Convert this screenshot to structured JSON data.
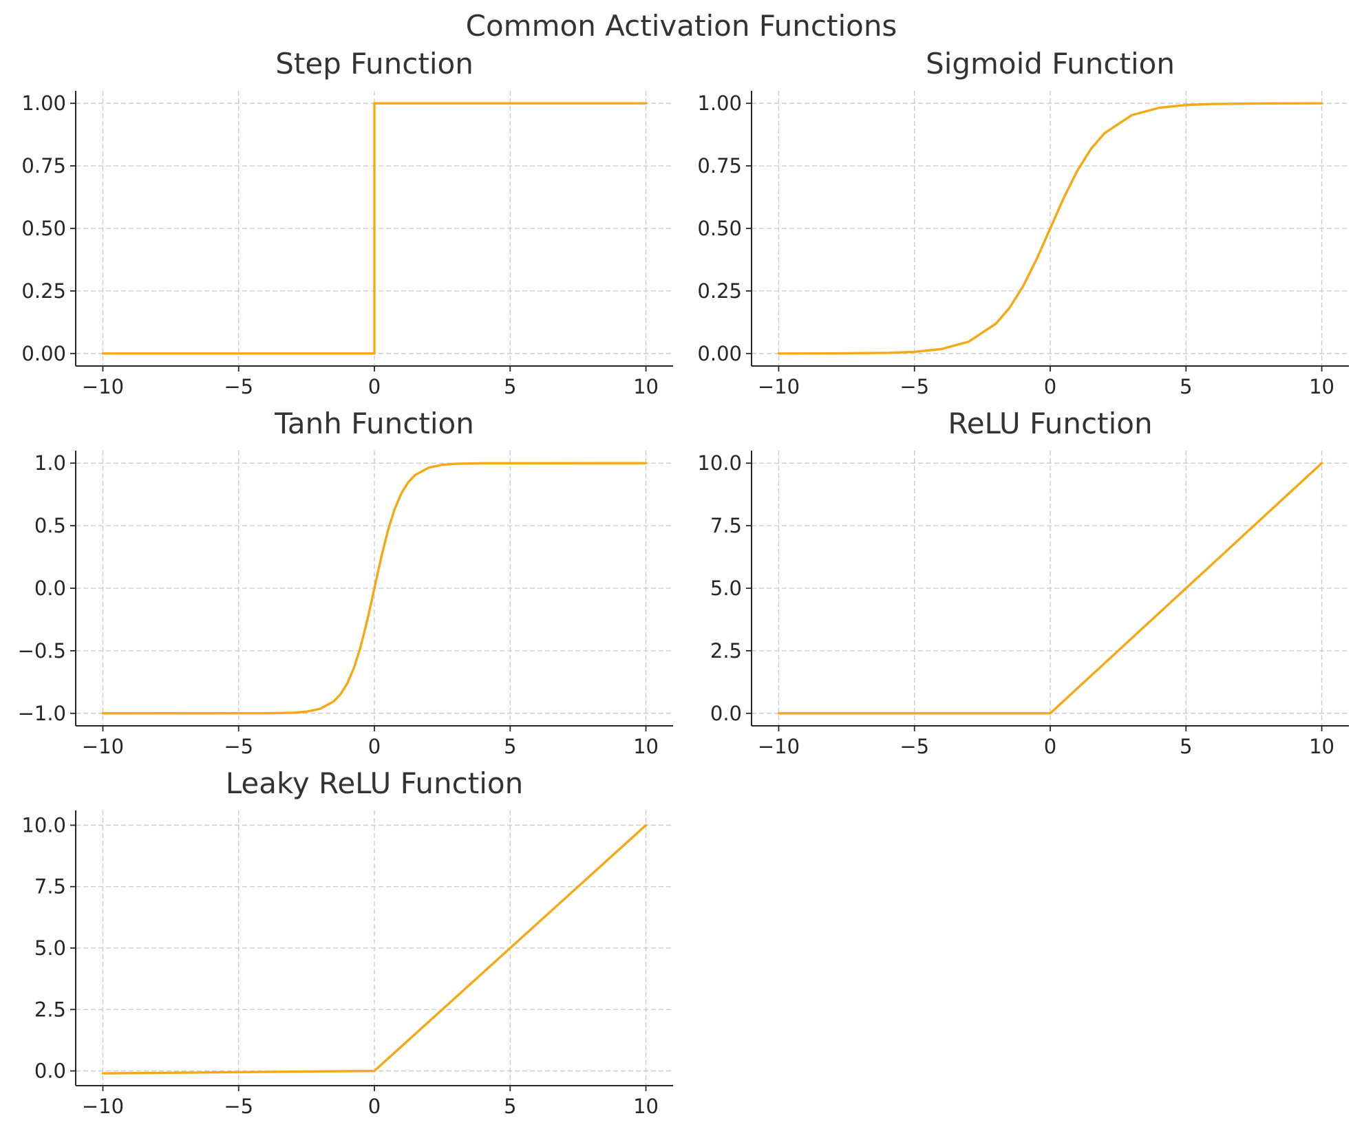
{
  "figure": {
    "title": "Common Activation Functions",
    "line_color": "#F5A813"
  },
  "chart_data": [
    {
      "type": "line",
      "title": "Step Function",
      "xlabel": "",
      "ylabel": "",
      "grid": true,
      "xlim": [
        -11,
        11
      ],
      "ylim": [
        -0.05,
        1.05
      ],
      "xticks": [
        -10,
        -5,
        0,
        5,
        10
      ],
      "xtick_labels": [
        "−10",
        "−5",
        "0",
        "5",
        "10"
      ],
      "yticks": [
        0,
        0.25,
        0.5,
        0.75,
        1
      ],
      "ytick_labels": [
        "0.00",
        "0.25",
        "0.50",
        "0.75",
        "1.00"
      ],
      "series": [
        {
          "x": [
            -10,
            0,
            0,
            10
          ],
          "y": [
            0,
            0,
            1,
            1
          ]
        }
      ]
    },
    {
      "type": "line",
      "title": "Sigmoid Function",
      "xlabel": "",
      "ylabel": "",
      "grid": true,
      "xlim": [
        -11,
        11
      ],
      "ylim": [
        -0.05,
        1.05
      ],
      "xticks": [
        -10,
        -5,
        0,
        5,
        10
      ],
      "xtick_labels": [
        "−10",
        "−5",
        "0",
        "5",
        "10"
      ],
      "yticks": [
        0,
        0.25,
        0.5,
        0.75,
        1
      ],
      "ytick_labels": [
        "0.00",
        "0.25",
        "0.50",
        "0.75",
        "1.00"
      ],
      "series": [
        {
          "x": [
            -10,
            -8,
            -6,
            -5,
            -4,
            -3,
            -2,
            -1.5,
            -1,
            -0.5,
            0,
            0.5,
            1,
            1.5,
            2,
            3,
            4,
            5,
            6,
            8,
            10
          ],
          "y": [
            4.54e-05,
            0.000335,
            0.00247,
            0.00669,
            0.018,
            0.0474,
            0.1192,
            0.1824,
            0.2689,
            0.3775,
            0.5,
            0.6225,
            0.7311,
            0.8176,
            0.8808,
            0.9526,
            0.982,
            0.9933,
            0.9975,
            0.99966,
            0.99995
          ]
        }
      ]
    },
    {
      "type": "line",
      "title": "Tanh Function",
      "xlabel": "",
      "ylabel": "",
      "grid": true,
      "xlim": [
        -11,
        11
      ],
      "ylim": [
        -1.1,
        1.1
      ],
      "xticks": [
        -10,
        -5,
        0,
        5,
        10
      ],
      "xtick_labels": [
        "−10",
        "−5",
        "0",
        "5",
        "10"
      ],
      "yticks": [
        -1,
        -0.5,
        0,
        0.5,
        1
      ],
      "ytick_labels": [
        "−1.0",
        "−0.5",
        "0.0",
        "0.5",
        "1.0"
      ],
      "series": [
        {
          "x": [
            -10,
            -4,
            -3,
            -2.5,
            -2,
            -1.5,
            -1.25,
            -1,
            -0.75,
            -0.5,
            -0.25,
            0,
            0.25,
            0.5,
            0.75,
            1,
            1.25,
            1.5,
            2,
            2.5,
            3,
            4,
            10
          ],
          "y": [
            -1,
            -0.9993,
            -0.9951,
            -0.9866,
            -0.964,
            -0.9051,
            -0.8483,
            -0.7616,
            -0.6351,
            -0.4621,
            -0.2449,
            0,
            0.2449,
            0.4621,
            0.6351,
            0.7616,
            0.8483,
            0.9051,
            0.964,
            0.9866,
            0.9951,
            0.9993,
            1
          ]
        }
      ]
    },
    {
      "type": "line",
      "title": "ReLU Function",
      "xlabel": "",
      "ylabel": "",
      "grid": true,
      "xlim": [
        -11,
        11
      ],
      "ylim": [
        -0.5,
        10.5
      ],
      "xticks": [
        -10,
        -5,
        0,
        5,
        10
      ],
      "xtick_labels": [
        "−10",
        "−5",
        "0",
        "5",
        "10"
      ],
      "yticks": [
        0,
        2.5,
        5,
        7.5,
        10
      ],
      "ytick_labels": [
        "0.0",
        "2.5",
        "5.0",
        "7.5",
        "10.0"
      ],
      "series": [
        {
          "x": [
            -10,
            0,
            10
          ],
          "y": [
            0,
            0,
            10
          ]
        }
      ]
    },
    {
      "type": "line",
      "title": "Leaky ReLU Function",
      "xlabel": "",
      "ylabel": "",
      "grid": true,
      "xlim": [
        -11,
        11
      ],
      "ylim": [
        -0.6,
        10.6
      ],
      "xticks": [
        -10,
        -5,
        0,
        5,
        10
      ],
      "xtick_labels": [
        "−10",
        "−5",
        "0",
        "5",
        "10"
      ],
      "yticks": [
        0,
        2.5,
        5,
        7.5,
        10
      ],
      "ytick_labels": [
        "0.0",
        "2.5",
        "5.0",
        "7.5",
        "10.0"
      ],
      "series": [
        {
          "x": [
            -10,
            0,
            10
          ],
          "y": [
            -0.1,
            0,
            10
          ]
        }
      ]
    }
  ]
}
